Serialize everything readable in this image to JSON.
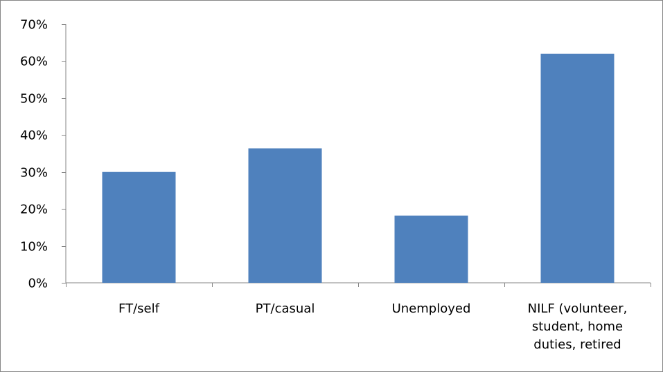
{
  "chart_data": {
    "type": "bar",
    "categories": [
      [
        "FT/self"
      ],
      [
        "PT/casual"
      ],
      [
        "Unemployed"
      ],
      [
        "NILF (volunteer,",
        "student, home",
        "duties, retired"
      ]
    ],
    "values": [
      30,
      36.4,
      18.2,
      62
    ],
    "ylim": [
      0,
      70
    ],
    "yticks": [
      0,
      10,
      20,
      30,
      40,
      50,
      60,
      70
    ],
    "ytick_labels": [
      "0%",
      "10%",
      "20%",
      "30%",
      "40%",
      "50%",
      "60%",
      "70%"
    ],
    "title": "",
    "xlabel": "",
    "ylabel": "",
    "grid": false,
    "legend": "none",
    "colors": {
      "bar": "#4F81BD",
      "axis": "#868686",
      "text": "#000000"
    }
  }
}
